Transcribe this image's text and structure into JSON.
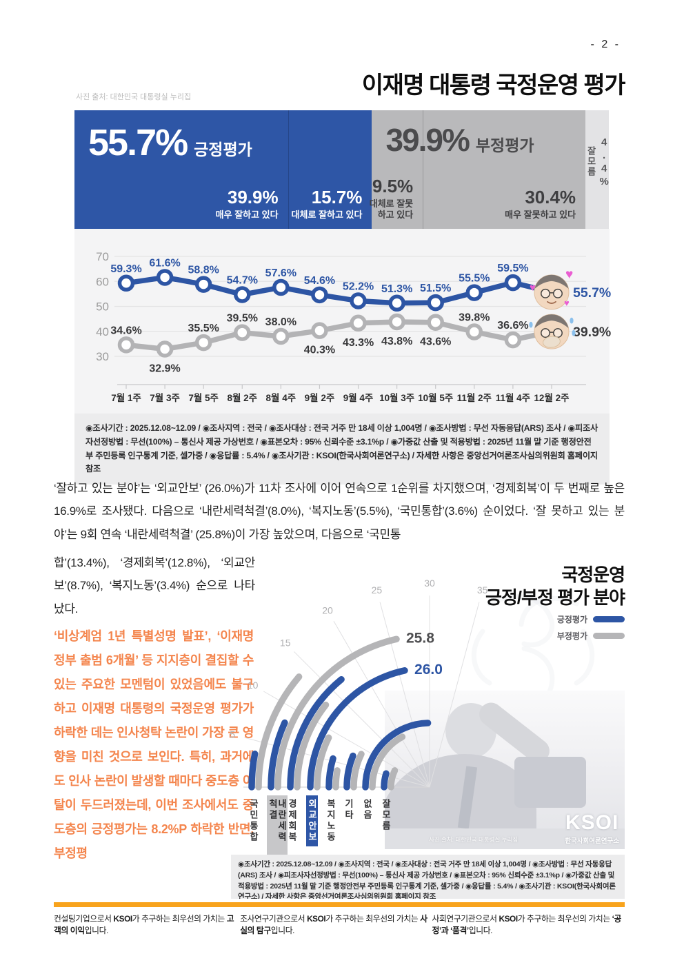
{
  "page": {
    "number_label": "- 2 -"
  },
  "header": {
    "photo_credit": "사진 출처: 대한민국 대통령실 누리집",
    "title": "이재명 대통령 국정운영 평가"
  },
  "approval_banner": {
    "positive": {
      "value": "55.7%",
      "label": "긍정평가",
      "segments": [
        {
          "value": "39.9%",
          "label": "매우 잘하고 있다",
          "width_pct": 39.9
        },
        {
          "value": "15.7%",
          "label": "대체로 잘하고 있다",
          "width_pct": 15.7
        }
      ]
    },
    "negative": {
      "value": "39.9%",
      "label": "부정평가",
      "segments": [
        {
          "value": "9.5%",
          "label": "대체로 잘못하고 있다",
          "width_pct": 9.5
        },
        {
          "value": "30.4%",
          "label": "매우 잘못하고 있다",
          "width_pct": 30.4
        }
      ]
    },
    "unsure": {
      "value": "4.4%",
      "label": "잘모름",
      "width_pct": 4.4
    }
  },
  "chart_data": [
    {
      "type": "line",
      "categories": [
        "7월 1주",
        "7월 3주",
        "7월 5주",
        "8월 2주",
        "8월 4주",
        "9월 2주",
        "9월 4주",
        "10월 3주",
        "10월 5주",
        "11월 2주",
        "11월 4주",
        "12월 2주"
      ],
      "series": [
        {
          "name": "긍정평가",
          "color": "#2d55a4",
          "values": [
            59.3,
            61.6,
            58.8,
            54.7,
            57.6,
            54.6,
            52.2,
            51.3,
            51.5,
            55.5,
            59.5,
            55.7
          ],
          "label_positions": [
            "above",
            "above",
            "above",
            "above",
            "above",
            "above",
            "above",
            "above",
            "above",
            "above",
            "above",
            "right"
          ]
        },
        {
          "name": "부정평가",
          "color": "#b3b3b5",
          "values": [
            34.6,
            32.9,
            35.5,
            39.5,
            38.0,
            40.3,
            43.3,
            43.8,
            43.6,
            39.8,
            36.6,
            39.9
          ],
          "label_positions": [
            "above",
            "below",
            "above",
            "above",
            "above",
            "below",
            "below",
            "below",
            "below",
            "above",
            "above",
            "right"
          ]
        }
      ],
      "yticks": [
        30,
        40,
        50,
        60,
        70
      ],
      "ylim": [
        30,
        70
      ],
      "grid": true,
      "legend": false
    },
    {
      "type": "radial-bar",
      "title": "국정운영 긍정/부정 평가 분야",
      "categories": [
        "국민통합",
        "내란세력척결",
        "경제회복",
        "외교안보",
        "복지노동",
        "기타",
        "없음",
        "잘모름"
      ],
      "series": [
        {
          "name": "긍정평가",
          "color": "#2d55a4",
          "values": [
            3.6,
            8.0,
            16.9,
            26.0,
            5.5,
            7.4,
            29.5,
            5.8
          ]
        },
        {
          "name": "부정평가",
          "color": "#b5b5b7",
          "values": [
            13.4,
            25.8,
            12.8,
            8.7,
            3.4,
            8.6,
            20.5,
            8.5
          ]
        }
      ],
      "scale_ticks": [
        5,
        10,
        15,
        20,
        25,
        30,
        35
      ],
      "annotations": [
        {
          "text": "25.8",
          "series_index": 1,
          "category_index": 1
        },
        {
          "text": "26.0",
          "series_index": 0,
          "category_index": 3
        }
      ],
      "highlighted_categories": {
        "내란세력척결": "gray",
        "외교안보": "blue"
      },
      "legend_position": "top-right"
    }
  ],
  "survey_note": "◉조사기간 : 2025.12.08~12.09 / ◉조사지역 : 전국 / ◉조사대상 : 전국 거주 만 18세 이상 1,004명 / ◉조사방법 : 무선 자동응답(ARS) 조사 / ◉피조사자선정방법 : 무선(100%) – 통신사 제공 가상번호 / ◉표본오차 : 95% 신뢰수준 ±3.1%p / ◉가중값 산출 및 적용방법 : 2025년 11월 말 기준 행정안전부 주민등록 인구통계 기준, 셀가중 / ◉응답률 : 5.4% / ◉조사기관 : KSOI(한국사회여론연구소) / 자세한 사항은 중앙선거여론조사심의위원회 홈페이지 참조",
  "main_paragraph": {
    "part1": "‘잘하고 있는 분야’는 ‘외교안보’ (26.0%)가 11차 조사에 이어 연속으로 1순위를 차지했으며, ‘경제회복’이 두 번째로 높은 16.9%로 조사됐다. 다음으로 ‘내란세력척결’(8.0%), ‘복지노동’(5.5%), ‘국민통합’(3.6%) 순이었다. ‘잘 못하고 있는 분야’는 9회 연속 ‘내란세력척결’ (25.8%)이 가장 높았으며, 다음으로 ‘국민통",
    "part2": "합’(13.4%), ‘경제회복’(12.8%), ‘외교안보’(8.7%), ‘복지노동’(3.4%) 순으로 나타났다."
  },
  "highlight_paragraph": "‘비상계엄 1년 특별성명 발표’, ‘이재명정부 출범 6개월’ 등 지지층이 결집할 수 있는 주요한 모멘텀이 있었음에도 불구하고 이재명 대통령의 국정운영 평가가 하락한 데는 인사청탁 논란이 가장 큰 영향을 미친 것으로 보인다. 특히, 과거에도 인사 논란이 발생할 때마다 중도층 이탈이 두드러졌는데, 이번 조사에서도 중도층의 긍정평가는 8.2%P 하락한 반면, 부정평",
  "field_chart": {
    "title_line1": "국정운영",
    "title_line2": "긍정/부정 평가 분야",
    "legend": [
      {
        "label": "긍정평가",
        "color": "#2d55a4"
      },
      {
        "label": "부정평가",
        "color": "#b5b5b7"
      }
    ]
  },
  "photo_overlay": {
    "logo": "KSOI",
    "org": "한국사회여론연구소",
    "credit": "사진 출처: 대한민국 대통령실 누리집"
  },
  "footer": {
    "statements": [
      {
        "prefix": "컨설팅기업으로서 ",
        "brand": "KSOI",
        "middle": "가 추구하는 최우선의 가치는 ",
        "emphasis": "고객의 이익",
        "suffix": "입니다."
      },
      {
        "prefix": "조사연구기관으로서 ",
        "brand": "KSOI",
        "middle": "가 추구하는 최우선의 가치는 ",
        "emphasis": "사실의 탐구",
        "suffix": "입니다."
      },
      {
        "prefix": "사회연구기관으로서 ",
        "brand": "KSOI",
        "middle": "가 추구하는 최우선의 가치는 ",
        "emphasis": "‘공정’과 ‘품격’",
        "suffix": "입니다."
      }
    ]
  },
  "colors": {
    "accent_blue": "#2d55a4",
    "banner_blue": "#2e56a6",
    "neutral_gray": "#b9b9bb",
    "unsure_gray": "#e3e3e5",
    "highlight_orange": "#f4854d",
    "footer_bar_orange": "#f8a31c",
    "panel_bg": "#f4f4f5",
    "note_bg": "#ececed"
  }
}
